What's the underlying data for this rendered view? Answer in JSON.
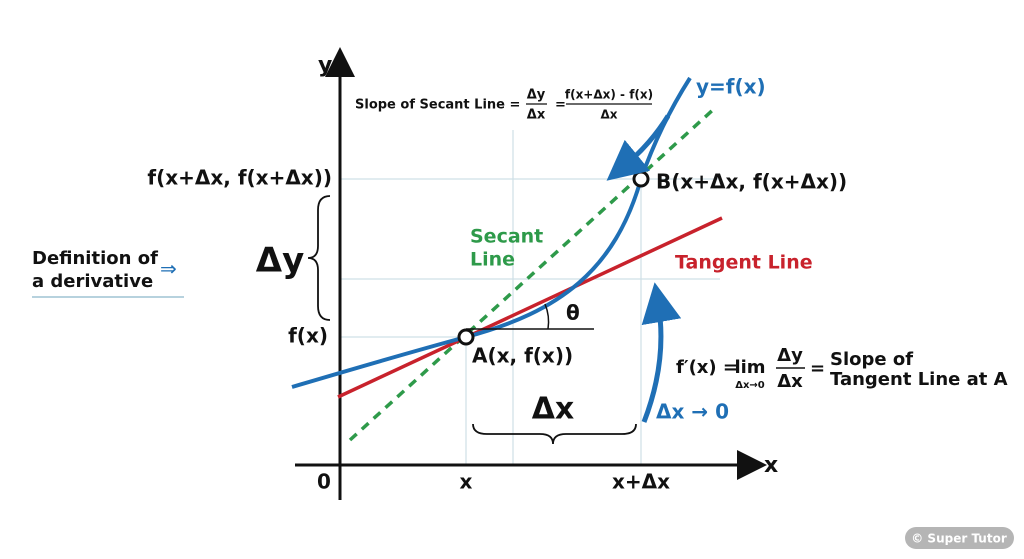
{
  "axes": {
    "y_label": "y",
    "x_label": "x",
    "origin": "0"
  },
  "x_ticks": [
    "x",
    "x+Δx"
  ],
  "y_ticks": [
    "f(x+Δx, f(x+Δx))",
    "f(x)"
  ],
  "curve_label": "y=f(x)",
  "secant_formula": {
    "lead": "Slope of Secant Line =",
    "fraction1": {
      "numerator": "Δy",
      "denominator": "Δx"
    },
    "equals": "=",
    "fraction2": {
      "numerator": "f(x+Δx) - f(x)",
      "denominator": "Δx"
    }
  },
  "secant_label": [
    "Secant",
    "Line"
  ],
  "tangent_label": "Tangent Line",
  "points": {
    "A": "A(x, f(x))",
    "B": "B(x+Δx, f(x+Δx))"
  },
  "angle": "θ",
  "delta_y": "Δy",
  "delta_x": "Δx",
  "limit_note": "Δx → 0",
  "derivative_formula": {
    "lhs": "f′(x) =",
    "lim": "lim",
    "lim_sub": "Δx→0",
    "numerator": "Δy",
    "denominator": "Δx",
    "equals": "=",
    "rhs": [
      "Slope of",
      "Tangent Line at A"
    ]
  },
  "side_note": {
    "lines": [
      "Definition of",
      "a  derivative"
    ],
    "arrow": "⇒"
  },
  "watermark": "© Super Tutor"
}
